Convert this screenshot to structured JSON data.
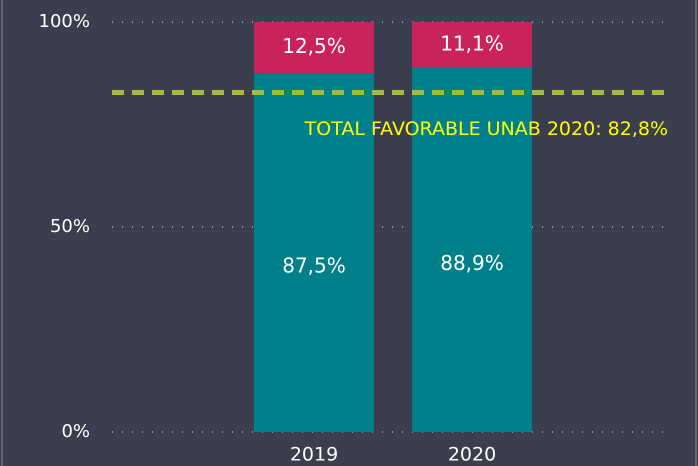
{
  "chart_data": {
    "type": "stacked_bar",
    "categories": [
      "2019",
      "2020"
    ],
    "series": [
      {
        "color": "#00808a",
        "values": [
          87.5,
          88.9
        ],
        "value_labels": [
          "87,5%",
          "88,9%"
        ]
      },
      {
        "color": "#c8235a",
        "values": [
          12.5,
          11.1
        ],
        "value_labels": [
          "12,5%",
          "11,1%"
        ]
      }
    ],
    "ylim": [
      0,
      100
    ],
    "yticks": [
      {
        "value": 0,
        "label": "0%"
      },
      {
        "value": 50,
        "label": "50%"
      },
      {
        "value": 100,
        "label": "100%"
      }
    ],
    "grid": true,
    "reference_line": {
      "value": 82.8,
      "label": "TOTAL FAVORABLE UNAB 2020: 82,8%",
      "color": "#a9b93a",
      "label_color": "#ffff00"
    }
  }
}
